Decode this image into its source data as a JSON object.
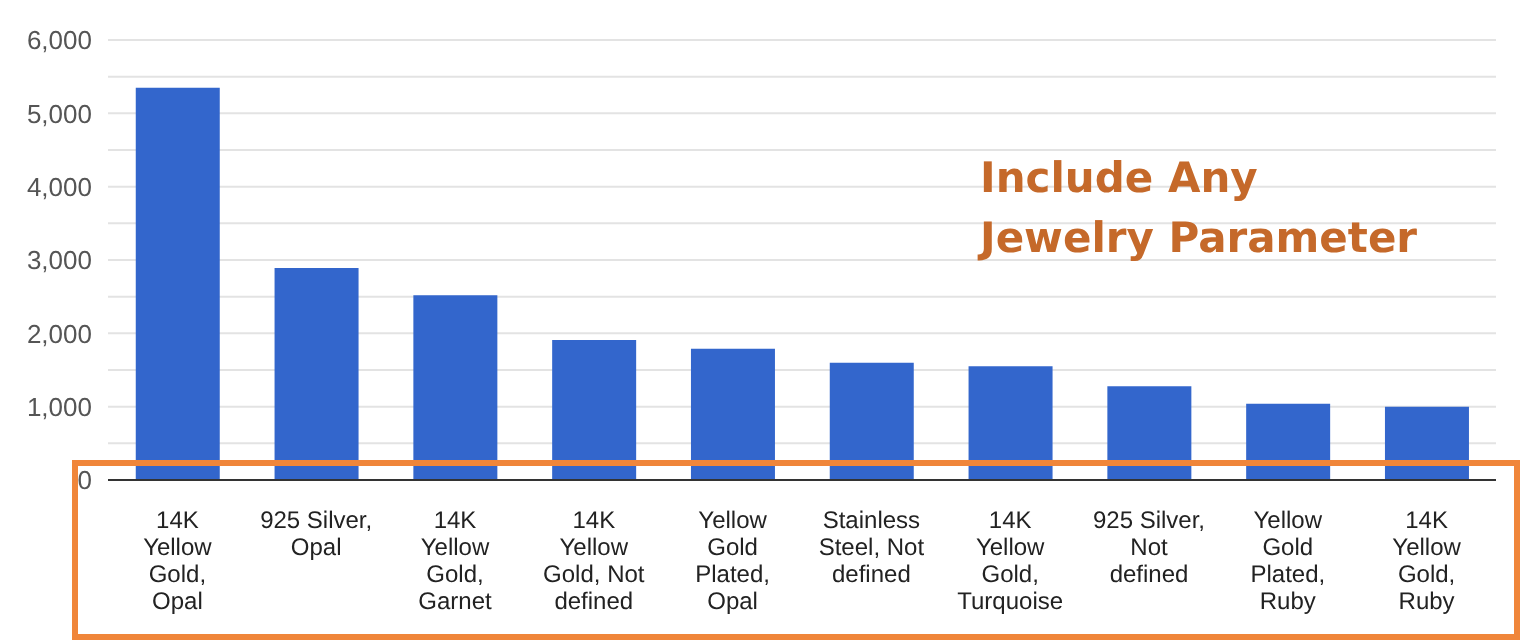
{
  "chart_data": {
    "type": "bar",
    "categories": [
      "14K Yellow Gold, Opal",
      "925 Silver, Opal",
      "14K Yellow Gold, Garnet",
      "14K Yellow Gold, Not defined",
      "Yellow Gold Plated, Opal",
      "Stainless Steel, Not defined",
      "14K Yellow Gold, Turquoise",
      "925 Silver, Not defined",
      "Yellow Gold Plated, Ruby",
      "14K Yellow Gold, Ruby"
    ],
    "values": [
      5350,
      2890,
      2520,
      1910,
      1790,
      1600,
      1550,
      1280,
      1040,
      1000
    ],
    "color": "#3366cc",
    "ylim": [
      0,
      6000
    ],
    "yticks": [
      {
        "value": 0,
        "label": "0"
      },
      {
        "value": 500,
        "label": null
      },
      {
        "value": 1000,
        "label": "1,000"
      },
      {
        "value": 1500,
        "label": null
      },
      {
        "value": 2000,
        "label": "2,000"
      },
      {
        "value": 2500,
        "label": null
      },
      {
        "value": 3000,
        "label": "3,000"
      },
      {
        "value": 3500,
        "label": null
      },
      {
        "value": 4000,
        "label": "4,000"
      },
      {
        "value": 4500,
        "label": null
      },
      {
        "value": 5000,
        "label": "5,000"
      },
      {
        "value": 5500,
        "label": null
      },
      {
        "value": 6000,
        "label": "6,000"
      }
    ],
    "grid": "y",
    "legend": false,
    "annotations": [
      "Include Any Jewelry Parameter"
    ]
  }
}
